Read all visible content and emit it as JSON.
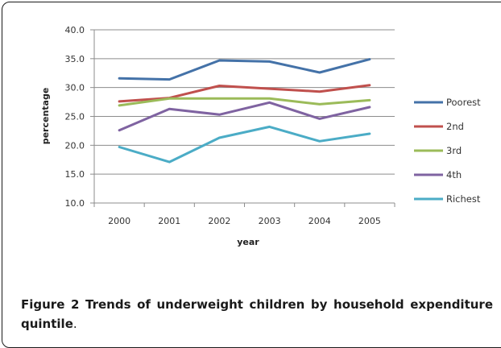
{
  "caption": {
    "label": "Figure 2",
    "text": "Trends of underweight children by household expenditure quintile",
    "end": "."
  },
  "chart_data": {
    "type": "line",
    "title": "",
    "xlabel": "year",
    "ylabel": "percentage",
    "categories": [
      "2000",
      "2001",
      "2002",
      "2003",
      "2004",
      "2005"
    ],
    "ylim": [
      10.0,
      40.0
    ],
    "yticks": [
      "10.0",
      "15.0",
      "20.0",
      "25.0",
      "30.0",
      "35.0",
      "40.0"
    ],
    "grid": true,
    "legend_position": "right",
    "series": [
      {
        "name": "Poorest",
        "color": "#4472a8",
        "values": [
          31.6,
          31.4,
          34.7,
          34.5,
          32.6,
          34.9
        ]
      },
      {
        "name": "2nd",
        "color": "#c0504d",
        "values": [
          27.6,
          28.2,
          30.3,
          29.8,
          29.3,
          30.4
        ]
      },
      {
        "name": "3rd",
        "color": "#9bbb59",
        "values": [
          26.9,
          28.1,
          28.1,
          28.1,
          27.1,
          27.8
        ]
      },
      {
        "name": "4th",
        "color": "#7f63a1",
        "values": [
          22.6,
          26.3,
          25.3,
          27.4,
          24.6,
          26.6
        ]
      },
      {
        "name": "Richest",
        "color": "#4bacc6",
        "values": [
          19.7,
          17.1,
          21.3,
          23.2,
          20.7,
          22.0
        ]
      }
    ]
  }
}
